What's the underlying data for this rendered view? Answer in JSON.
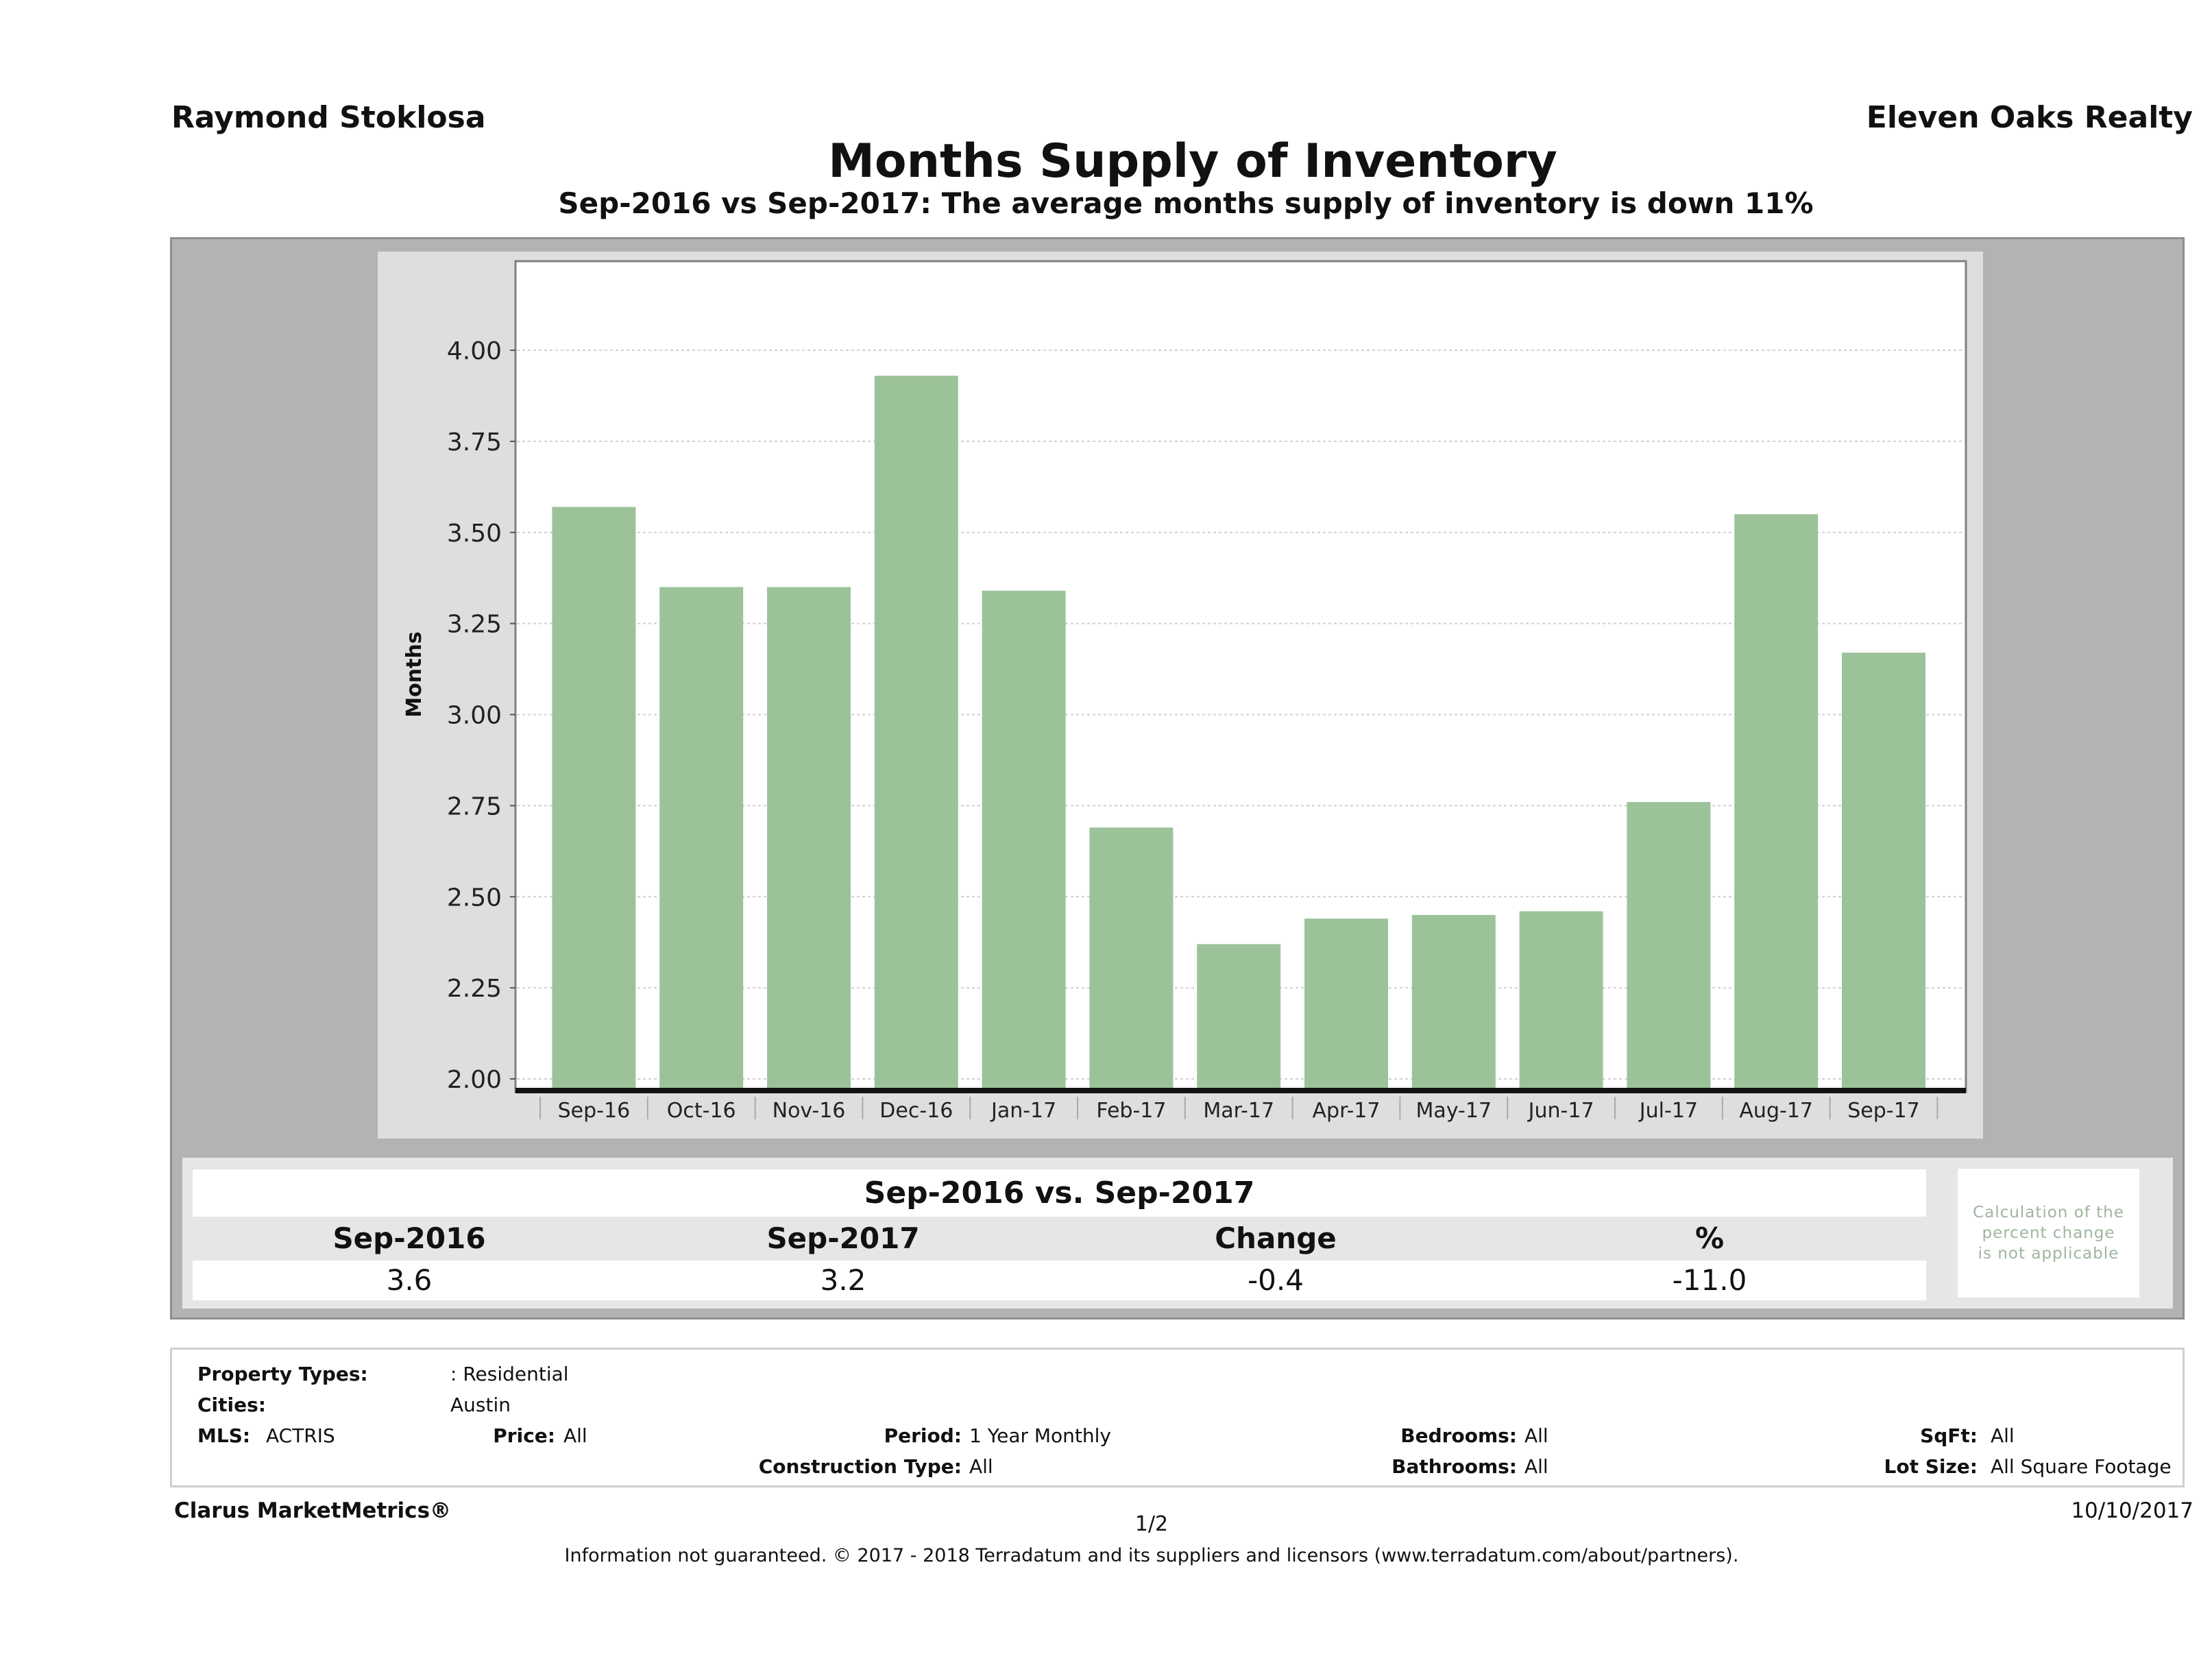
{
  "header": {
    "agent_name": "Raymond Stoklosa",
    "brokerage": "Eleven Oaks Realty",
    "title": "Months Supply of Inventory",
    "subtitle": "Sep-2016 vs Sep-2017: The average months supply of inventory is down 11%"
  },
  "chart_data": {
    "type": "bar",
    "title": "Months Supply of Inventory",
    "subtitle": "Sep-2016 vs Sep-2017: The average months supply of inventory is down 11%",
    "xlabel": "",
    "ylabel": "Months",
    "categories": [
      "Sep-16",
      "Oct-16",
      "Nov-16",
      "Dec-16",
      "Jan-17",
      "Feb-17",
      "Mar-17",
      "Apr-17",
      "May-17",
      "Jun-17",
      "Jul-17",
      "Aug-17",
      "Sep-17"
    ],
    "values": [
      3.57,
      3.35,
      3.35,
      3.93,
      3.34,
      2.69,
      2.37,
      2.44,
      2.45,
      2.46,
      2.76,
      3.55,
      3.17
    ],
    "ylim": [
      2.0,
      4.0
    ],
    "yticks": [
      "2.00",
      "2.25",
      "2.50",
      "2.75",
      "3.00",
      "3.25",
      "3.50",
      "3.75",
      "4.00"
    ],
    "grid": true,
    "legend": "none",
    "bar_color": "#9cc29a"
  },
  "summary": {
    "title": "Sep-2016 vs. Sep-2017",
    "headers": [
      "Sep-2016",
      "Sep-2017",
      "Change",
      "%"
    ],
    "values": [
      "3.6",
      "3.2",
      "-0.4",
      "-11.0"
    ],
    "note": "Calculation of the percent change is not applicable",
    "note_lines": [
      "Calculation of the",
      "percent change",
      "is not applicable"
    ]
  },
  "filters": {
    "property_types": {
      "label": "Property Types:",
      "value": ": Residential"
    },
    "cities": {
      "label": "Cities:",
      "value": "Austin"
    },
    "mls": {
      "label": "MLS:",
      "value": "ACTRIS"
    },
    "price": {
      "label": "Price:",
      "value": "All"
    },
    "period": {
      "label": "Period:",
      "value": "1 Year Monthly"
    },
    "construction_type": {
      "label": "Construction Type:",
      "value": "All"
    },
    "bedrooms": {
      "label": "Bedrooms:",
      "value": "All"
    },
    "bathrooms": {
      "label": "Bathrooms:",
      "value": "All"
    },
    "sqft": {
      "label": "SqFt:",
      "value": "All"
    },
    "lot_size": {
      "label": "Lot Size:",
      "value": "All Square Footage"
    }
  },
  "footer": {
    "brand": "Clarus MarketMetrics®",
    "page": "1/2",
    "date": "10/10/2017",
    "disclaimer": "Information not guaranteed. © 2017 - 2018 Terradatum and its suppliers and licensors (www.terradatum.com/about/partners)."
  }
}
